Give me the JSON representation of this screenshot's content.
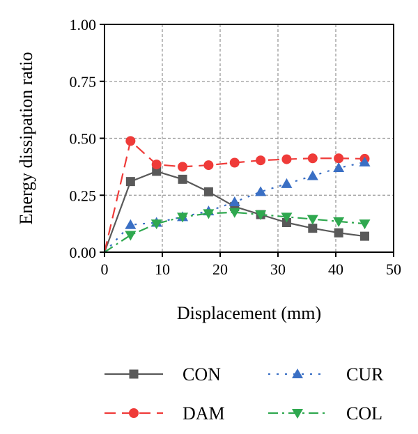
{
  "chart_data": {
    "type": "line",
    "title": "",
    "xlabel": "Displacement (mm)",
    "ylabel": "Energy dissipation ratio",
    "xlim": [
      0,
      50
    ],
    "ylim": [
      0,
      1.0
    ],
    "xticks": [
      0,
      10,
      20,
      30,
      40,
      50
    ],
    "yticks": [
      0.0,
      0.25,
      0.5,
      0.75,
      1.0
    ],
    "xtick_labels": [
      "0",
      "10",
      "20",
      "30",
      "40",
      "50"
    ],
    "ytick_labels": [
      "0.00",
      "0.25",
      "0.50",
      "0.75",
      "1.00"
    ],
    "grid": true,
    "legend_position": "bottom",
    "series": [
      {
        "name": "CON",
        "color": "#595959",
        "marker": "square",
        "line_style": "solid",
        "x": [
          0,
          4.5,
          9,
          13.5,
          18,
          22.5,
          27,
          31.5,
          36,
          40.5,
          45
        ],
        "y": [
          0.0,
          0.31,
          0.355,
          0.32,
          0.265,
          0.2,
          0.165,
          0.13,
          0.105,
          0.085,
          0.07
        ]
      },
      {
        "name": "DAM",
        "color": "#ef3b39",
        "marker": "circle",
        "line_style": "dashed",
        "x": [
          0,
          4.5,
          9,
          13.5,
          18,
          22.5,
          27,
          31.5,
          36,
          40.5,
          45
        ],
        "y": [
          0.0,
          0.488,
          0.385,
          0.375,
          0.382,
          0.393,
          0.403,
          0.408,
          0.412,
          0.412,
          0.41
        ]
      },
      {
        "name": "CUR",
        "color": "#3a6fc4",
        "marker": "triangle-up",
        "line_style": "dotted",
        "x": [
          0,
          4.5,
          9,
          13.5,
          18,
          22.5,
          27,
          31.5,
          36,
          40.5,
          45
        ],
        "y": [
          0.0,
          0.12,
          0.13,
          0.155,
          0.18,
          0.22,
          0.265,
          0.3,
          0.335,
          0.37,
          0.395
        ]
      },
      {
        "name": "COL",
        "color": "#2fa84f",
        "marker": "triangle-down",
        "line_style": "dashdot",
        "x": [
          0,
          4.5,
          9,
          13.5,
          18,
          22.5,
          27,
          31.5,
          36,
          40.5,
          45
        ],
        "y": [
          0.0,
          0.075,
          0.125,
          0.155,
          0.17,
          0.175,
          0.165,
          0.155,
          0.145,
          0.135,
          0.125
        ]
      }
    ]
  }
}
